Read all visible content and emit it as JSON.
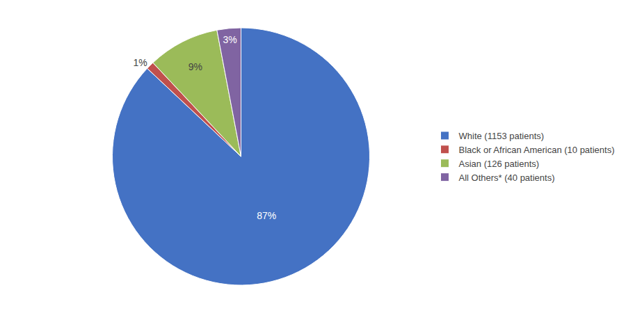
{
  "chart_data": {
    "type": "pie",
    "categories": [
      "White (1153 patients)",
      "Black or African American (10 patients)",
      "Asian (126 patients)",
      "All Others* (40 patients)"
    ],
    "values": [
      87,
      1,
      9,
      3
    ],
    "value_labels": [
      "87%",
      "1%",
      "9%",
      "3%"
    ],
    "colors": [
      "#4472C4",
      "#C0504D",
      "#9BBB59",
      "#8064A2"
    ],
    "data_labels": true,
    "legend": "right"
  }
}
